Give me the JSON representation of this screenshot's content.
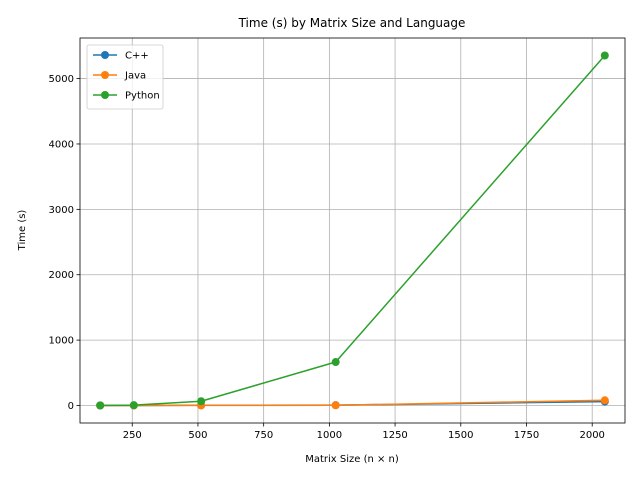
{
  "chart_data": {
    "type": "line",
    "title": "Time (s) by Matrix Size and Language",
    "xlabel": "Matrix Size (n × n)",
    "ylabel": "Time (s)",
    "x": [
      128,
      256,
      512,
      1024,
      2048
    ],
    "xlim": [
      51.2,
      2124.8
    ],
    "ylim": [
      -267.7,
      5620.7
    ],
    "xticks": [
      250,
      500,
      750,
      1000,
      1250,
      1500,
      1750,
      2000
    ],
    "yticks": [
      0,
      1000,
      2000,
      3000,
      4000,
      5000
    ],
    "grid": true,
    "legend_position": "top-left",
    "marker": "circle",
    "series": [
      {
        "name": "C++",
        "color": "#1f77b4",
        "values": [
          0.05,
          0.4,
          3.2,
          5,
          60
        ]
      },
      {
        "name": "Java",
        "color": "#ff7f0e",
        "values": [
          0.1,
          0.6,
          1,
          3,
          80
        ]
      },
      {
        "name": "Python",
        "color": "#2ca02c",
        "values": [
          2,
          5,
          65,
          665,
          5353
        ]
      }
    ]
  }
}
